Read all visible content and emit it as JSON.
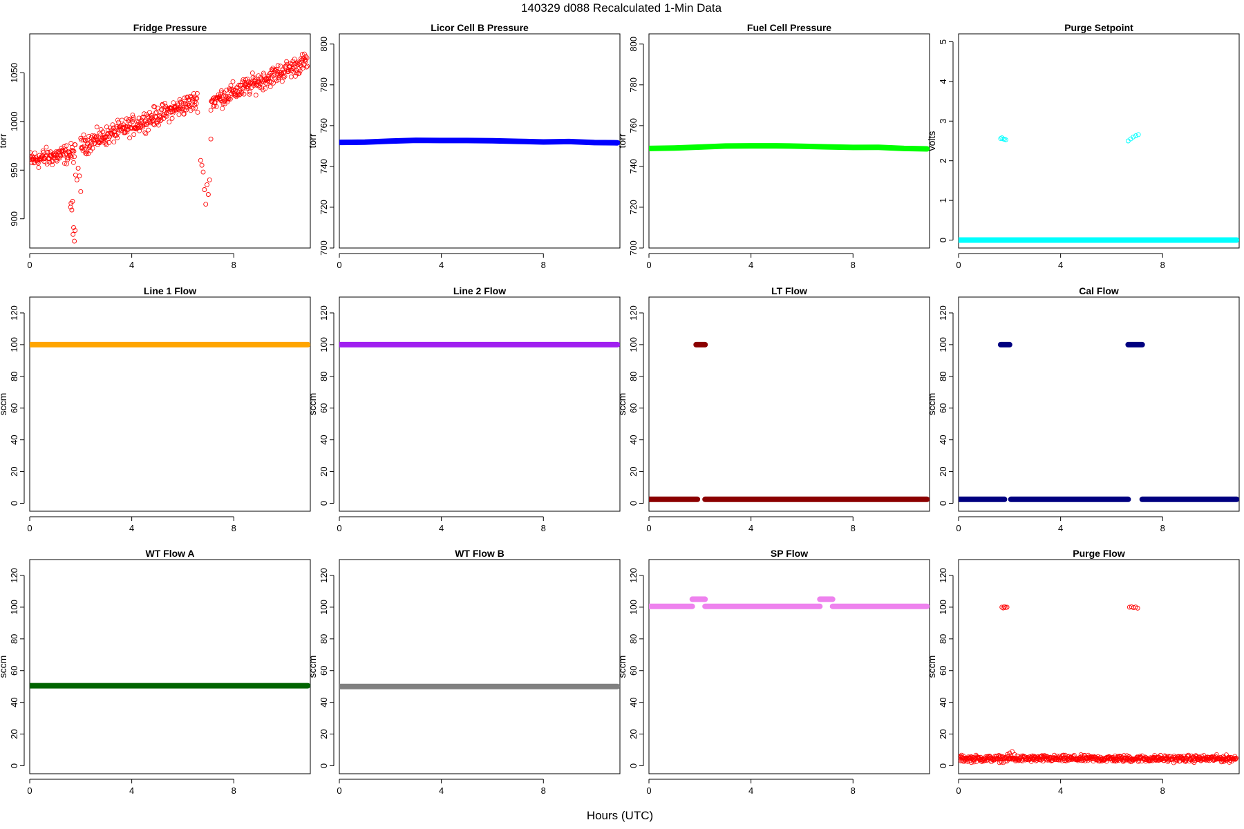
{
  "figure": {
    "title": "140329   d088   Recalculated 1-Min Data",
    "xlabel": "Hours (UTC)"
  },
  "chart_data": [
    {
      "type": "scatter",
      "title": "Fridge Pressure",
      "ylabel": "torr",
      "color": "#ff0000",
      "marker": "open-circle",
      "xlim": [
        0,
        11
      ],
      "ylim": [
        870,
        1090
      ],
      "xticks": [
        0,
        4,
        8
      ],
      "yticks": [
        900,
        950,
        1000,
        1050
      ],
      "series": [
        {
          "kind": "trend",
          "segments": [
            {
              "x": [
                0,
                1.8
              ],
              "y": [
                960,
                968
              ],
              "spread": 12
            },
            {
              "x": [
                2.0,
                6.6
              ],
              "y": [
                975,
                1022
              ],
              "spread": 12
            },
            {
              "x": [
                7.1,
                10.9
              ],
              "y": [
                1020,
                1062
              ],
              "spread": 12
            }
          ]
        },
        {
          "kind": "points",
          "x": [
            1.6,
            1.62,
            1.65,
            1.68,
            1.7,
            1.72,
            1.75,
            1.78,
            1.8,
            1.85,
            1.9,
            1.95,
            2.0
          ],
          "y": [
            912,
            916,
            909,
            918,
            884,
            891,
            877,
            888,
            945,
            940,
            952,
            944,
            928
          ]
        },
        {
          "kind": "points",
          "x": [
            6.7,
            6.75,
            6.8,
            6.85,
            6.9,
            6.95,
            7.0,
            7.05,
            7.1
          ],
          "y": [
            960,
            955,
            948,
            930,
            915,
            935,
            925,
            940,
            982
          ],
          "note": ""
        }
      ]
    },
    {
      "type": "scatter",
      "title": "Licor Cell B Pressure",
      "ylabel": "torr",
      "color": "#0000ff",
      "marker": "filled-band",
      "xlim": [
        0,
        11
      ],
      "ylim": [
        700,
        805
      ],
      "xticks": [
        0,
        4,
        8
      ],
      "yticks": [
        700,
        720,
        740,
        760,
        780,
        800
      ],
      "series": [
        {
          "kind": "band",
          "x": [
            0,
            1,
            2,
            3,
            4,
            5,
            6,
            7,
            8,
            9,
            10,
            10.9
          ],
          "y": [
            751.8,
            751.9,
            752.4,
            752.8,
            752.7,
            752.7,
            752.6,
            752.3,
            752.0,
            752.2,
            751.7,
            751.6
          ]
        }
      ]
    },
    {
      "type": "scatter",
      "title": "Fuel Cell Pressure",
      "ylabel": "torr",
      "color": "#00ff00",
      "marker": "filled-band",
      "xlim": [
        0,
        11
      ],
      "ylim": [
        700,
        805
      ],
      "xticks": [
        0,
        4,
        8
      ],
      "yticks": [
        700,
        720,
        740,
        760,
        780,
        800
      ],
      "series": [
        {
          "kind": "band",
          "x": [
            0,
            1,
            2,
            3,
            4,
            5,
            6,
            7,
            8,
            9,
            10,
            10.9
          ],
          "y": [
            748.8,
            749.0,
            749.5,
            750.0,
            750.1,
            750.1,
            749.9,
            749.6,
            749.3,
            749.4,
            748.8,
            748.6
          ]
        }
      ]
    },
    {
      "type": "scatter",
      "title": "Purge Setpoint",
      "ylabel": "volts",
      "color": "#00ffff",
      "marker": "open-circle",
      "xlim": [
        0,
        11
      ],
      "ylim": [
        -0.2,
        5.2
      ],
      "xticks": [
        0,
        4,
        8
      ],
      "yticks": [
        0,
        1,
        2,
        3,
        4,
        5
      ],
      "series": [
        {
          "kind": "band",
          "x": [
            0,
            10.9
          ],
          "y": [
            0,
            0
          ]
        },
        {
          "kind": "points",
          "x": [
            1.65,
            1.7,
            1.75,
            1.8,
            1.85
          ],
          "y": [
            2.56,
            2.58,
            2.55,
            2.54,
            2.53
          ]
        },
        {
          "kind": "points",
          "x": [
            6.65,
            6.75,
            6.85,
            6.95,
            7.05
          ],
          "y": [
            2.5,
            2.55,
            2.6,
            2.63,
            2.66
          ]
        }
      ]
    },
    {
      "type": "scatter",
      "title": "Line 1 Flow",
      "ylabel": "sccm",
      "color": "#ffa500",
      "marker": "filled-band",
      "xlim": [
        0,
        11
      ],
      "ylim": [
        -5,
        130
      ],
      "xticks": [
        0,
        4,
        8
      ],
      "yticks": [
        0,
        20,
        40,
        60,
        80,
        100,
        120
      ],
      "series": [
        {
          "kind": "band",
          "x": [
            0,
            10.9
          ],
          "y": [
            100,
            100
          ]
        }
      ]
    },
    {
      "type": "scatter",
      "title": "Line 2 Flow",
      "ylabel": "sccm",
      "color": "#a020f0",
      "marker": "filled-band",
      "xlim": [
        0,
        11
      ],
      "ylim": [
        -5,
        130
      ],
      "xticks": [
        0,
        4,
        8
      ],
      "yticks": [
        0,
        20,
        40,
        60,
        80,
        100,
        120
      ],
      "series": [
        {
          "kind": "band",
          "x": [
            0,
            10.9
          ],
          "y": [
            100,
            100
          ]
        }
      ]
    },
    {
      "type": "scatter",
      "title": "LT Flow",
      "ylabel": "sccm",
      "color": "#8b0000",
      "marker": "filled-band",
      "xlim": [
        0,
        11
      ],
      "ylim": [
        -5,
        130
      ],
      "xticks": [
        0,
        4,
        8
      ],
      "yticks": [
        0,
        20,
        40,
        60,
        80,
        100,
        120
      ],
      "series": [
        {
          "kind": "band",
          "x": [
            0,
            1.9
          ],
          "y": [
            2.5,
            2.5
          ]
        },
        {
          "kind": "band",
          "x": [
            1.85,
            2.2
          ],
          "y": [
            100,
            100
          ]
        },
        {
          "kind": "band",
          "x": [
            2.2,
            10.9
          ],
          "y": [
            2.5,
            2.5
          ]
        }
      ]
    },
    {
      "type": "scatter",
      "title": "Cal Flow",
      "ylabel": "sccm",
      "color": "#000080",
      "marker": "filled-band",
      "xlim": [
        0,
        11
      ],
      "ylim": [
        -5,
        130
      ],
      "xticks": [
        0,
        4,
        8
      ],
      "yticks": [
        0,
        20,
        40,
        60,
        80,
        100,
        120
      ],
      "series": [
        {
          "kind": "band",
          "x": [
            0,
            1.8
          ],
          "y": [
            2.5,
            2.5
          ]
        },
        {
          "kind": "band",
          "x": [
            1.65,
            2.0
          ],
          "y": [
            100,
            100
          ]
        },
        {
          "kind": "band",
          "x": [
            2.05,
            6.65
          ],
          "y": [
            2.5,
            2.5
          ]
        },
        {
          "kind": "band",
          "x": [
            6.65,
            7.2
          ],
          "y": [
            100,
            100
          ]
        },
        {
          "kind": "band",
          "x": [
            7.2,
            10.9
          ],
          "y": [
            2.5,
            2.5
          ]
        }
      ]
    },
    {
      "type": "scatter",
      "title": "WT Flow A",
      "ylabel": "sccm",
      "color": "#006400",
      "marker": "filled-band",
      "xlim": [
        0,
        11
      ],
      "ylim": [
        -5,
        130
      ],
      "xticks": [
        0,
        4,
        8
      ],
      "yticks": [
        0,
        20,
        40,
        60,
        80,
        100,
        120
      ],
      "series": [
        {
          "kind": "band",
          "x": [
            0,
            10.9
          ],
          "y": [
            50.5,
            50.5
          ]
        }
      ]
    },
    {
      "type": "scatter",
      "title": "WT Flow B",
      "ylabel": "sccm",
      "color": "#808080",
      "marker": "filled-band",
      "xlim": [
        0,
        11
      ],
      "ylim": [
        -5,
        130
      ],
      "xticks": [
        0,
        4,
        8
      ],
      "yticks": [
        0,
        20,
        40,
        60,
        80,
        100,
        120
      ],
      "series": [
        {
          "kind": "band",
          "x": [
            0,
            10.9
          ],
          "y": [
            50,
            50
          ]
        }
      ]
    },
    {
      "type": "scatter",
      "title": "SP Flow",
      "ylabel": "sccm",
      "color": "#ee82ee",
      "marker": "filled-band",
      "xlim": [
        0,
        11
      ],
      "ylim": [
        -5,
        130
      ],
      "xticks": [
        0,
        4,
        8
      ],
      "yticks": [
        0,
        20,
        40,
        60,
        80,
        100,
        120
      ],
      "series": [
        {
          "kind": "band",
          "x": [
            0,
            1.7
          ],
          "y": [
            100.5,
            100.5
          ]
        },
        {
          "kind": "band",
          "x": [
            1.7,
            2.2
          ],
          "y": [
            105,
            105
          ]
        },
        {
          "kind": "band",
          "x": [
            2.2,
            6.7
          ],
          "y": [
            100.5,
            100.5
          ]
        },
        {
          "kind": "band",
          "x": [
            6.7,
            7.2
          ],
          "y": [
            105,
            105
          ]
        },
        {
          "kind": "band",
          "x": [
            7.2,
            10.9
          ],
          "y": [
            100.5,
            100.5
          ]
        }
      ]
    },
    {
      "type": "scatter",
      "title": "Purge Flow",
      "ylabel": "sccm",
      "color": "#ff0000",
      "marker": "open-circle",
      "xlim": [
        0,
        11
      ],
      "ylim": [
        -5,
        130
      ],
      "xticks": [
        0,
        4,
        8
      ],
      "yticks": [
        0,
        20,
        40,
        60,
        80,
        100,
        120
      ],
      "series": [
        {
          "kind": "trend",
          "segments": [
            {
              "x": [
                0,
                10.9
              ],
              "y": [
                4.5,
                4.5
              ],
              "spread": 2.5
            }
          ]
        },
        {
          "kind": "points",
          "x": [
            1.7,
            1.75,
            1.8,
            1.85,
            1.9,
            2.0,
            2.1,
            2.2
          ],
          "y": [
            100,
            99.5,
            100.3,
            99.8,
            100,
            8,
            9,
            7
          ]
        },
        {
          "kind": "points",
          "x": [
            6.7,
            6.78,
            6.86,
            6.94,
            7.02
          ],
          "y": [
            100,
            100.2,
            99.7,
            100.1,
            99.4
          ]
        }
      ]
    }
  ]
}
